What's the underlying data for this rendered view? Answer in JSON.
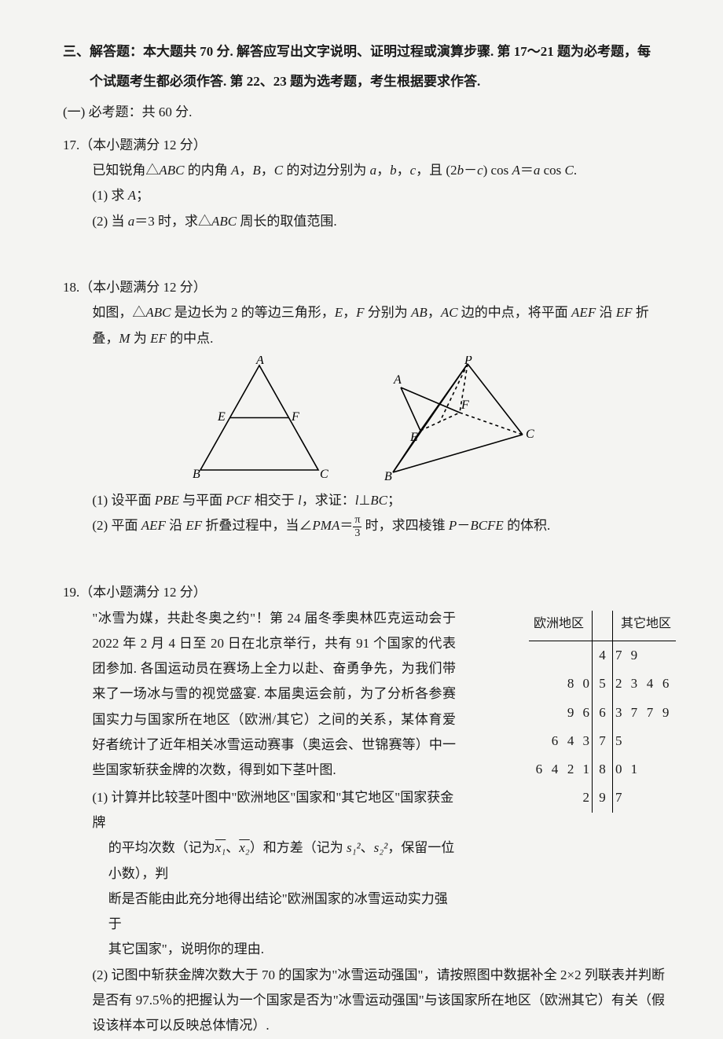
{
  "section": {
    "heading_l1": "三、解答题：本大题共 70 分. 解答应写出文字说明、证明过程或演算步骤. 第 17～21 题为必考题，每",
    "heading_l2": "个试题考生都必须作答. 第 22、23 题为选考题，考生根据要求作答.",
    "required_label": "(一) 必考题：共 60 分."
  },
  "q17": {
    "header": "17.（本小题满分 12 分）",
    "line1a": "已知锐角△",
    "line1b": " 的内角 ",
    "line1c": " 的对边分别为 ",
    "line1d": "，且 (2",
    "line1e": ") cos ",
    "line1f": " cos ",
    "p1": "(1) 求 ",
    "p1b": "；",
    "p2a": "(2) 当 ",
    "p2b": "＝3 时，求△",
    "p2c": " 周长的取值范围."
  },
  "q18": {
    "header": "18.（本小题满分 12 分）",
    "l1a": "如图，△",
    "l1b": " 是边长为 2 的等边三角形，",
    "l1c": " 分别为 ",
    "l1d": " 边的中点，将平面 ",
    "l1e": " 沿 ",
    "l1f": " 折",
    "l2a": "叠，",
    "l2b": " 为 ",
    "l2c": " 的中点.",
    "p1a": "(1) 设平面 ",
    "p1b": " 与平面 ",
    "p1c": " 相交于 ",
    "p1d": "，求证：",
    "p1e": "；",
    "p2a": "(2) 平面 ",
    "p2b": " 沿 ",
    "p2c": " 折叠过程中，当∠",
    "p2d": "＝",
    "p2e": " 时，求四棱锥 ",
    "p2f": " 的体积.",
    "frac_n": "π",
    "frac_d": "3",
    "fig": {
      "labels": {
        "A": "A",
        "B": "B",
        "C": "C",
        "E": "E",
        "F": "F",
        "P": "P"
      }
    }
  },
  "q19": {
    "header": "19.（本小题满分 12 分）",
    "para": "\"冰雪为媒，共赴冬奥之约\"！第 24 届冬季奥林匹克运动会于 2022 年 2 月 4 日至 20 日在北京举行，共有 91 个国家的代表团参加. 各国运动员在赛场上全力以赴、奋勇争先，为我们带来了一场冰与雪的视觉盛宴. 本届奥运会前，为了分析各参赛国实力与国家所在地区（欧洲/其它）之间的关系，某体育爱好者统计了近年相关冰雪运动赛事（奥运会、世锦赛等）中一些国家斩获金牌的次数，得到如下茎叶图.",
    "p1a": "(1) 计算并比较茎叶图中\"欧洲地区\"国家和\"其它地区\"国家获金牌",
    "p1b": "的平均次数（记为",
    "p1c": "、",
    "p1d": "）和方差（记为 ",
    "p1e": "，保留一位小数），判",
    "p1f": "断是否能由此充分地得出结论\"欧洲国家的冰雪运动实力强于",
    "p1g": "其它国家\"，说明你的理由.",
    "p2": "(2) 记图中斩获金牌次数大于 70 的国家为\"冰雪运动强国\"，请按照图中数据补全 2×2 列联表并判断是否有 97.5％的把握认为一个国家是否为\"冰雪运动强国\"与该国家所在地区（欧洲其它）有关（假设该样本可以反映总体情况）.",
    "x1": "x₁",
    "x2": "x₂",
    "s1": "s₁²",
    "s2": "s₂²",
    "stemleaf": {
      "header_left": "欧洲地区",
      "header_right": "其它地区",
      "rows": [
        {
          "left": [],
          "stem": "4",
          "right": [
            "7",
            "9"
          ]
        },
        {
          "left": [
            "8",
            "0"
          ],
          "stem": "5",
          "right": [
            "2",
            "3",
            "4",
            "6"
          ]
        },
        {
          "left": [
            "9",
            "6"
          ],
          "stem": "6",
          "right": [
            "3",
            "7",
            "7",
            "9"
          ]
        },
        {
          "left": [
            "6",
            "4",
            "3"
          ],
          "stem": "7",
          "right": [
            "5"
          ]
        },
        {
          "left": [
            "6",
            "4",
            "2",
            "1"
          ],
          "stem": "8",
          "right": [
            "0",
            "1"
          ]
        },
        {
          "left": [
            "2"
          ],
          "stem": "9",
          "right": [
            "7"
          ]
        }
      ]
    }
  }
}
